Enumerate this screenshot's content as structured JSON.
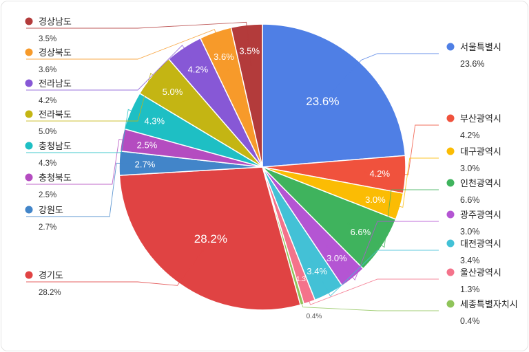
{
  "chart_data": {
    "type": "pie",
    "slices": [
      {
        "label": "서울특별시",
        "value": 23.6,
        "display": "23.6%",
        "color": "#4f7fe5"
      },
      {
        "label": "부산광역시",
        "value": 4.2,
        "display": "4.2%",
        "color": "#f0523d"
      },
      {
        "label": "대구광역시",
        "value": 3.0,
        "display": "3.0%",
        "color": "#fbbc04"
      },
      {
        "label": "인천광역시",
        "value": 6.6,
        "display": "6.6%",
        "color": "#3fb35d"
      },
      {
        "label": "광주광역시",
        "value": 3.0,
        "display": "3.0%",
        "color": "#b455d3"
      },
      {
        "label": "대전광역시",
        "value": 3.4,
        "display": "3.4%",
        "color": "#43c1d6"
      },
      {
        "label": "울산광역시",
        "value": 1.3,
        "display": "1.3%",
        "inner": "1.3",
        "color": "#f4738b"
      },
      {
        "label": "세종특별자치시",
        "value": 0.4,
        "display": "0.4%",
        "color": "#8fc45a"
      },
      {
        "label": "경기도",
        "value": 28.2,
        "display": "28.2%",
        "color": "#e04343"
      },
      {
        "label": "강원도",
        "value": 2.7,
        "display": "2.7%",
        "color": "#4285c9"
      },
      {
        "label": "충청북도",
        "value": 2.5,
        "display": "2.5%",
        "color": "#b44cc0"
      },
      {
        "label": "충청남도",
        "value": 4.3,
        "display": "4.3%",
        "color": "#1ebfc4"
      },
      {
        "label": "전라북도",
        "value": 5.0,
        "display": "5.0%",
        "color": "#c4b513"
      },
      {
        "label": "전라남도",
        "value": 4.2,
        "display": "4.2%",
        "color": "#8758d6"
      },
      {
        "label": "경상북도",
        "value": 3.6,
        "display": "3.6%",
        "color": "#f79a2a"
      },
      {
        "label": "경상남도",
        "value": 3.5,
        "display": "3.5%",
        "color": "#b33b3b"
      }
    ]
  }
}
